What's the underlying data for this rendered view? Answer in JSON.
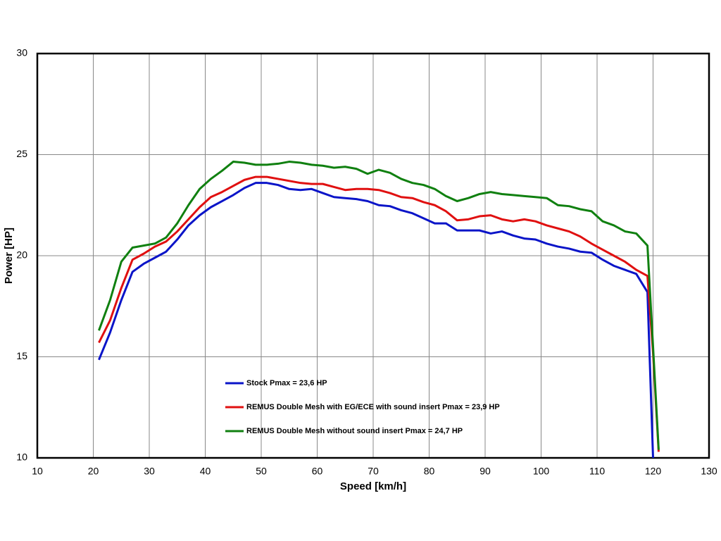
{
  "chart_data": {
    "type": "line",
    "xlabel": "Speed [km/h]",
    "ylabel": "Power [HP]",
    "x": [
      21,
      23,
      25,
      27,
      29,
      31,
      33,
      35,
      37,
      39,
      41,
      43,
      45,
      47,
      49,
      51,
      53,
      55,
      57,
      59,
      61,
      63,
      65,
      67,
      69,
      71,
      73,
      75,
      77,
      79,
      81,
      83,
      85,
      87,
      89,
      91,
      93,
      95,
      97,
      99,
      101,
      103,
      105,
      107,
      109,
      111,
      113,
      115,
      117,
      119,
      120,
      121
    ],
    "series": [
      {
        "name": "Stock Pmax = 23,6 HP",
        "color": "#0a14c8",
        "values": [
          14.85,
          16.2,
          17.8,
          19.2,
          19.6,
          19.9,
          20.2,
          20.8,
          21.5,
          22.0,
          22.4,
          22.7,
          23.0,
          23.35,
          23.6,
          23.6,
          23.5,
          23.3,
          23.25,
          23.3,
          23.1,
          22.9,
          22.85,
          22.8,
          22.7,
          22.5,
          22.45,
          22.25,
          22.1,
          21.85,
          21.6,
          21.6,
          21.25,
          21.25,
          21.25,
          21.1,
          21.2,
          21.0,
          20.85,
          20.8,
          20.6,
          20.45,
          20.35,
          20.2,
          20.15,
          19.8,
          19.5,
          19.3,
          19.1,
          18.2,
          10,
          null
        ]
      },
      {
        "name": "REMUS Double Mesh with EG/ECE with sound insert Pmax = 23,9 HP",
        "color": "#e01010",
        "values": [
          15.7,
          16.8,
          18.4,
          19.8,
          20.1,
          20.45,
          20.7,
          21.2,
          21.8,
          22.4,
          22.9,
          23.15,
          23.45,
          23.75,
          23.9,
          23.9,
          23.8,
          23.7,
          23.6,
          23.55,
          23.55,
          23.4,
          23.25,
          23.3,
          23.3,
          23.25,
          23.1,
          22.9,
          22.85,
          22.65,
          22.5,
          22.2,
          21.75,
          21.8,
          21.95,
          22.0,
          21.8,
          21.7,
          21.8,
          21.7,
          21.5,
          21.35,
          21.2,
          20.95,
          20.6,
          20.3,
          20.0,
          19.7,
          19.3,
          19.0,
          15.2,
          10.3
        ]
      },
      {
        "name": "REMUS Double Mesh without sound insert Pmax = 24,7 HP",
        "color": "#108010",
        "values": [
          16.3,
          17.8,
          19.7,
          20.4,
          20.5,
          20.6,
          20.9,
          21.6,
          22.5,
          23.3,
          23.8,
          24.2,
          24.65,
          24.6,
          24.5,
          24.5,
          24.55,
          24.65,
          24.6,
          24.5,
          24.45,
          24.35,
          24.4,
          24.3,
          24.05,
          24.25,
          24.1,
          23.8,
          23.6,
          23.5,
          23.3,
          22.95,
          22.7,
          22.85,
          23.05,
          23.15,
          23.05,
          23.0,
          22.95,
          22.9,
          22.85,
          22.5,
          22.45,
          22.3,
          22.2,
          21.7,
          21.5,
          21.2,
          21.1,
          20.5,
          15.5,
          10.4
        ]
      }
    ],
    "xlim": [
      10,
      130
    ],
    "xticks": [
      10,
      20,
      30,
      40,
      50,
      60,
      70,
      80,
      90,
      100,
      110,
      120,
      130
    ],
    "ylim": [
      10,
      30
    ],
    "yticks": [
      10,
      15,
      20,
      25,
      30
    ],
    "grid": true,
    "legend": "lower center"
  }
}
